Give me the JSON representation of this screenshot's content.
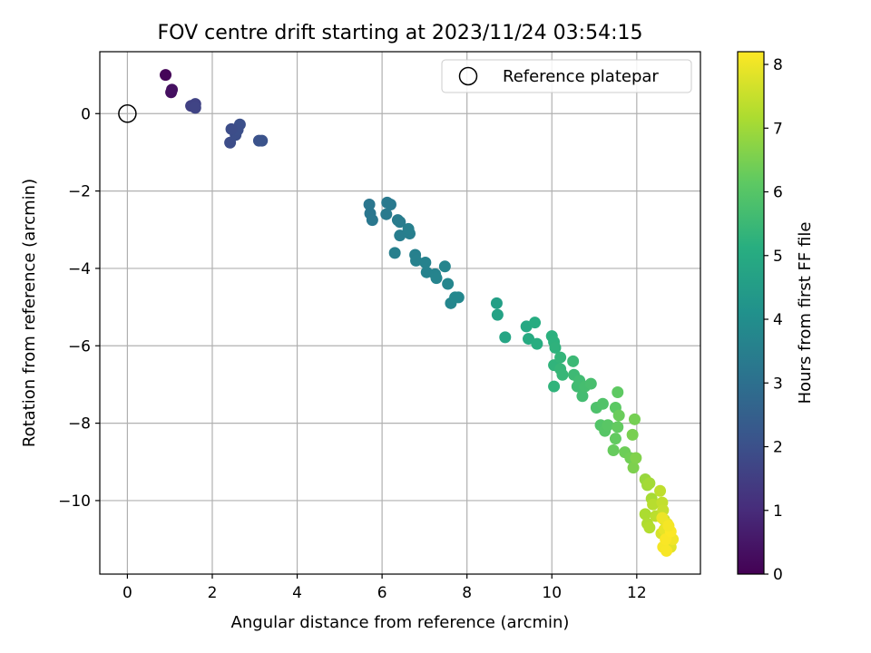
{
  "chart_data": {
    "type": "scatter",
    "title": "FOV centre drift starting at 2023/11/24 03:54:15",
    "xlabel": "Angular distance from reference (arcmin)",
    "ylabel": "Rotation from reference (arcmin)",
    "xlim": [
      -0.65,
      13.5
    ],
    "ylim": [
      -11.9,
      1.6
    ],
    "xticks": [
      0,
      2,
      4,
      6,
      8,
      10,
      12
    ],
    "yticks": [
      0,
      -2,
      -4,
      -6,
      -8,
      -10
    ],
    "grid": true,
    "legend": {
      "position": "top-right",
      "entries": [
        "Reference platepar"
      ]
    },
    "reference_point": {
      "x": 0,
      "y": 0,
      "marker": "open-circle"
    },
    "colorbar": {
      "label": "Hours from first FF file",
      "colormap": "viridis",
      "range": [
        0,
        8.2
      ],
      "ticks": [
        0,
        1,
        2,
        3,
        4,
        5,
        6,
        7,
        8
      ]
    },
    "series": [
      {
        "x": [
          0.9,
          1.03,
          1.05,
          1.5,
          1.6,
          1.6,
          2.42,
          2.55,
          2.65,
          2.6,
          2.45,
          3.1,
          3.17,
          5.7,
          5.72,
          5.77,
          6.12,
          6.2,
          6.1,
          6.37,
          6.42,
          6.42,
          6.65,
          6.62,
          6.3,
          6.78,
          6.8,
          7.05,
          7.02,
          7.25,
          7.28,
          7.48,
          7.55,
          7.62,
          7.8,
          7.72,
          8.7,
          8.72,
          8.9,
          9.4,
          9.45,
          9.6,
          9.65,
          10.0,
          10.05,
          10.08,
          10.05,
          10.2,
          10.2,
          10.25,
          10.5,
          10.52,
          10.6,
          10.65,
          10.72,
          10.78,
          10.92,
          11.05,
          11.2,
          11.15,
          11.25,
          11.32,
          11.5,
          11.55,
          11.5,
          11.45,
          11.58,
          11.72,
          11.85,
          11.95,
          11.9,
          11.92,
          11.98,
          10.05,
          11.55,
          12.2,
          12.25,
          12.3,
          12.35,
          12.2,
          12.25,
          12.3,
          12.38,
          12.45,
          12.55,
          12.6,
          12.62,
          12.65,
          12.58,
          12.68,
          12.75,
          12.8,
          12.65,
          12.72,
          12.78,
          12.85,
          12.62,
          12.7,
          12.68,
          12.8,
          12.6,
          12.75
        ],
        "y": [
          1.0,
          0.55,
          0.62,
          0.2,
          0.25,
          0.15,
          -0.75,
          -0.55,
          -0.28,
          -0.42,
          -0.4,
          -0.7,
          -0.7,
          -2.35,
          -2.58,
          -2.75,
          -2.3,
          -2.35,
          -2.6,
          -2.75,
          -2.8,
          -3.15,
          -3.1,
          -2.98,
          -3.6,
          -3.65,
          -3.8,
          -4.1,
          -3.85,
          -4.15,
          -4.25,
          -3.95,
          -4.4,
          -4.9,
          -4.75,
          -4.75,
          -4.9,
          -5.2,
          -5.78,
          -5.5,
          -5.82,
          -5.4,
          -5.95,
          -5.75,
          -5.9,
          -6.05,
          -6.5,
          -6.3,
          -6.6,
          -6.75,
          -6.4,
          -6.75,
          -7.05,
          -6.9,
          -7.3,
          -7.05,
          -6.98,
          -7.6,
          -7.5,
          -8.05,
          -8.2,
          -8.05,
          -7.6,
          -7.2,
          -8.4,
          -8.7,
          -7.8,
          -8.75,
          -8.9,
          -7.9,
          -8.3,
          -9.15,
          -8.9,
          -7.05,
          -8.1,
          -9.45,
          -9.6,
          -9.55,
          -9.95,
          -10.35,
          -10.6,
          -10.7,
          -10.1,
          -10.4,
          -9.75,
          -10.05,
          -10.25,
          -10.5,
          -10.85,
          -10.9,
          -11.05,
          -11.2,
          -10.75,
          -10.6,
          -10.95,
          -11.0,
          -11.2,
          -11.3,
          -11.0,
          -10.8,
          -10.45,
          -10.65
        ],
        "hours": [
          0.1,
          0.3,
          0.35,
          1.55,
          1.6,
          1.65,
          1.9,
          1.95,
          2.0,
          1.98,
          1.92,
          2.05,
          2.08,
          3.2,
          3.22,
          3.25,
          3.3,
          3.32,
          3.35,
          3.38,
          3.4,
          3.45,
          3.47,
          3.5,
          3.5,
          3.55,
          3.58,
          3.6,
          3.62,
          3.65,
          3.68,
          3.7,
          3.72,
          3.75,
          3.78,
          3.8,
          4.6,
          4.7,
          4.8,
          4.9,
          5.0,
          5.05,
          5.1,
          5.2,
          5.22,
          5.25,
          5.3,
          5.35,
          5.4,
          5.42,
          5.5,
          5.55,
          5.6,
          5.62,
          5.65,
          5.7,
          5.75,
          5.85,
          5.9,
          5.95,
          6.0,
          6.05,
          6.1,
          6.15,
          6.2,
          6.25,
          6.3,
          6.35,
          6.4,
          6.45,
          6.5,
          6.55,
          6.6,
          5.3,
          6.2,
          6.9,
          7.0,
          7.05,
          7.1,
          7.15,
          7.2,
          7.25,
          7.3,
          7.35,
          7.4,
          7.45,
          7.5,
          7.55,
          7.7,
          7.75,
          7.8,
          7.85,
          7.9,
          7.95,
          8.0,
          8.05,
          8.1,
          8.12,
          8.15,
          8.18,
          8.0,
          8.1
        ]
      }
    ]
  }
}
